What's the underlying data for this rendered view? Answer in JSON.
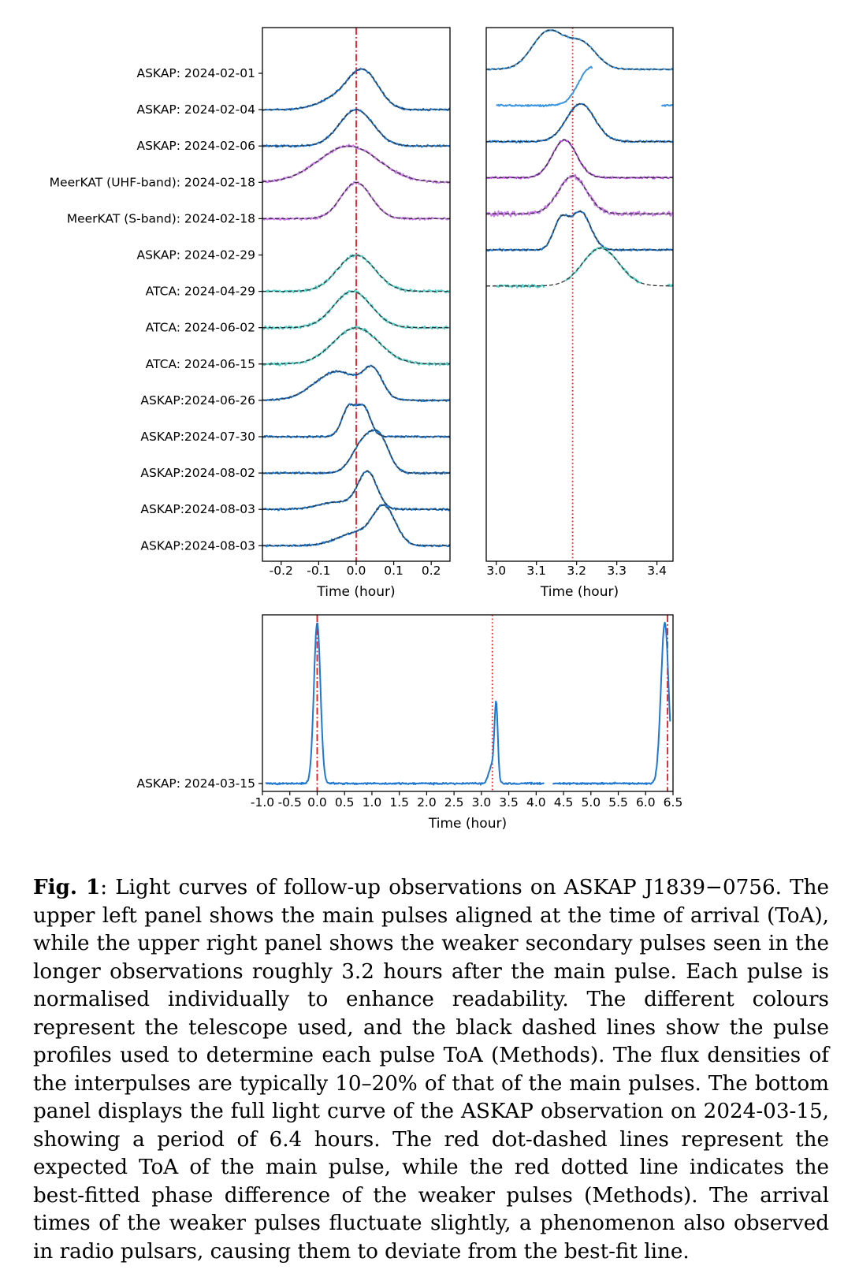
{
  "chart_data": [
    {
      "type": "line",
      "panel": "upper-left",
      "title": "",
      "xlabel": "Time (hour)",
      "ylabel": "",
      "xlim": [
        -0.25,
        0.25
      ],
      "xticks": [
        "-0.2",
        "-0.1",
        "0.0",
        "0.1",
        "0.2"
      ],
      "reference_line": {
        "x": 0.0,
        "style": "dot-dashed",
        "color": "#e41a1c"
      },
      "grid": false,
      "series": [
        {
          "label": "ASKAP: 2024-02-01",
          "telescope": "ASKAP",
          "color": "#1f78d1",
          "has_data": false
        },
        {
          "label": "ASKAP: 2024-02-04",
          "telescope": "ASKAP",
          "color": "#1f78d1",
          "components": [
            {
              "center": 0.02,
              "amp": 1.0,
              "width": 0.04
            },
            {
              "center": -0.05,
              "amp": 0.3,
              "width": 0.05
            }
          ]
        },
        {
          "label": "ASKAP: 2024-02-06",
          "telescope": "ASKAP",
          "color": "#1f78d1",
          "components": [
            {
              "center": 0.0,
              "amp": 1.0,
              "width": 0.045
            }
          ]
        },
        {
          "label": "MeerKAT (UHF-band): 2024-02-18",
          "telescope": "MeerKAT",
          "color": "#c77be8",
          "components": [
            {
              "center": -0.02,
              "amp": 1.0,
              "width": 0.08
            }
          ]
        },
        {
          "label": "MeerKAT (S-band): 2024-02-18",
          "telescope": "MeerKAT",
          "color": "#c77be8",
          "components": [
            {
              "center": 0.0,
              "amp": 1.0,
              "width": 0.04
            }
          ]
        },
        {
          "label": "ASKAP: 2024-02-29",
          "telescope": "ASKAP",
          "color": "#1f78d1",
          "has_data": false
        },
        {
          "label": "ATCA: 2024-04-29",
          "telescope": "ATCA",
          "color": "#55cfc8",
          "components": [
            {
              "center": 0.0,
              "amp": 1.0,
              "width": 0.05
            }
          ]
        },
        {
          "label": "ATCA: 2024-06-02",
          "telescope": "ATCA",
          "color": "#55cfc8",
          "components": [
            {
              "center": -0.01,
              "amp": 1.0,
              "width": 0.05
            }
          ]
        },
        {
          "label": "ATCA: 2024-06-15",
          "telescope": "ATCA",
          "color": "#55cfc8",
          "components": [
            {
              "center": 0.0,
              "amp": 1.0,
              "width": 0.06
            }
          ]
        },
        {
          "label": "ASKAP:2024-06-26",
          "telescope": "ASKAP",
          "color": "#1f78d1",
          "components": [
            {
              "center": -0.05,
              "amp": 0.8,
              "width": 0.06
            },
            {
              "center": 0.045,
              "amp": 0.7,
              "width": 0.025
            }
          ]
        },
        {
          "label": "ASKAP:2024-07-30",
          "telescope": "ASKAP",
          "color": "#1f78d1",
          "components": [
            {
              "center": -0.02,
              "amp": 0.8,
              "width": 0.018
            },
            {
              "center": 0.02,
              "amp": 0.8,
              "width": 0.018
            }
          ]
        },
        {
          "label": "ASKAP:2024-08-02",
          "telescope": "ASKAP",
          "color": "#1f78d1",
          "components": [
            {
              "center": 0.02,
              "amp": 0.85,
              "width": 0.03
            },
            {
              "center": 0.065,
              "amp": 0.8,
              "width": 0.025
            }
          ]
        },
        {
          "label": "ASKAP:2024-08-03",
          "telescope": "ASKAP",
          "color": "#1f78d1",
          "components": [
            {
              "center": 0.03,
              "amp": 1.0,
              "width": 0.025
            },
            {
              "center": -0.05,
              "amp": 0.2,
              "width": 0.05
            }
          ]
        },
        {
          "label": "ASKAP:2024-08-03",
          "telescope": "ASKAP",
          "color": "#1f78d1",
          "components": [
            {
              "center": 0.075,
              "amp": 1.0,
              "width": 0.03
            },
            {
              "center": 0.0,
              "amp": 0.35,
              "width": 0.05
            }
          ]
        }
      ]
    },
    {
      "type": "line",
      "panel": "upper-right",
      "title": "",
      "xlabel": "Time (hour)",
      "ylabel": "",
      "xlim": [
        2.975,
        3.44
      ],
      "xticks": [
        "3.0",
        "3.1",
        "3.2",
        "3.3",
        "3.4"
      ],
      "reference_line": {
        "x": 3.19,
        "style": "dotted",
        "color": "#e41a1c"
      },
      "grid": false,
      "series": [
        {
          "color": "#3a96e0",
          "fit": true,
          "noise": 0.5,
          "components": [
            {
              "center": 3.13,
              "amp": 1.0,
              "width": 0.04
            },
            {
              "center": 3.215,
              "amp": 0.65,
              "width": 0.035
            }
          ]
        },
        {
          "color": "#3a96e0",
          "fit": false,
          "segments": [
            [
              3.0,
              3.24
            ],
            [
              3.41,
              3.44
            ]
          ],
          "components": [
            {
              "center": 3.235,
              "amp": 1.0,
              "width": 0.03
            }
          ]
        },
        {
          "color": "#1f78d1",
          "fit": true,
          "components": [
            {
              "center": 3.21,
              "amp": 1.0,
              "width": 0.035
            }
          ]
        },
        {
          "color": "#b04fd8",
          "fit": true,
          "components": [
            {
              "center": 3.17,
              "amp": 1.0,
              "width": 0.03
            }
          ]
        },
        {
          "color": "#c77be8",
          "fit": true,
          "noise": 1.4,
          "components": [
            {
              "center": 3.19,
              "amp": 1.0,
              "width": 0.035
            }
          ]
        },
        {
          "color": "#1f78d1",
          "fit": true,
          "components": [
            {
              "center": 3.16,
              "amp": 0.75,
              "width": 0.018
            },
            {
              "center": 3.21,
              "amp": 1.0,
              "width": 0.025
            }
          ]
        },
        {
          "color": "#55cfc8",
          "fit": true,
          "noise": 0.9,
          "segments": [
            [
              3.0,
              3.12
            ],
            [
              3.17,
              3.36
            ],
            [
              3.425,
              3.44
            ]
          ],
          "components": [
            {
              "center": 3.26,
              "amp": 1.0,
              "width": 0.045
            }
          ]
        }
      ]
    },
    {
      "type": "line",
      "panel": "bottom",
      "title": "",
      "xlabel": "Time (hour)",
      "ylabel": "",
      "xlim": [
        -1.0,
        6.5
      ],
      "xticks": [
        "-1.0",
        "-0.5",
        "0.0",
        "0.5",
        "1.0",
        "1.5",
        "2.0",
        "2.5",
        "3.0",
        "3.5",
        "4.0",
        "4.5",
        "5.0",
        "5.5",
        "6.0",
        "6.5"
      ],
      "reference_lines": [
        {
          "x": 0.0,
          "style": "dot-dashed",
          "color": "#e41a1c"
        },
        {
          "x": 3.2,
          "style": "dotted",
          "color": "#e41a1c"
        },
        {
          "x": 6.4,
          "style": "dot-dashed",
          "color": "#e41a1c"
        }
      ],
      "grid": false,
      "series": [
        {
          "label": "ASKAP: 2024-03-15",
          "telescope": "ASKAP",
          "color": "#1f78d1",
          "segments": [
            [
              -0.95,
              4.15
            ],
            [
              4.3,
              6.45
            ]
          ],
          "components": [
            {
              "center": 0.0,
              "amp": 1.0,
              "width": 0.06
            },
            {
              "center": 3.27,
              "amp": 0.45,
              "width": 0.03
            },
            {
              "center": 3.2,
              "amp": 0.12,
              "width": 0.06
            },
            {
              "center": 6.35,
              "amp": 1.0,
              "width": 0.07
            }
          ]
        }
      ]
    }
  ],
  "caption": {
    "label": "Fig. 1",
    "text": ": Light curves of follow-up observations on ASKAP J1839−0756. The upper left panel shows the main pulses aligned at the time of arrival (ToA), while the upper right panel shows the weaker secondary pulses seen in the longer observations roughly 3.2 hours after the main pulse. Each pulse is normalised individually to enhance readability. The different colours represent the telescope used, and the black dashed lines show the pulse profiles used to determine each pulse ToA (Methods). The flux densities of the interpulses are typically 10–20% of that of the main pulses. The bottom panel displays the full light curve of the ASKAP observation on 2024-03-15, showing a period of 6.4 hours. The red dot-dashed lines represent the expected ToA of the main pulse, while the red dotted line indicates the best-fitted phase difference of the weaker pulses (Methods). The arrival times of the weaker pulses fluctuate slightly, a phenomenon also observed in radio pulsars, causing them to deviate from the best-fit line."
  }
}
